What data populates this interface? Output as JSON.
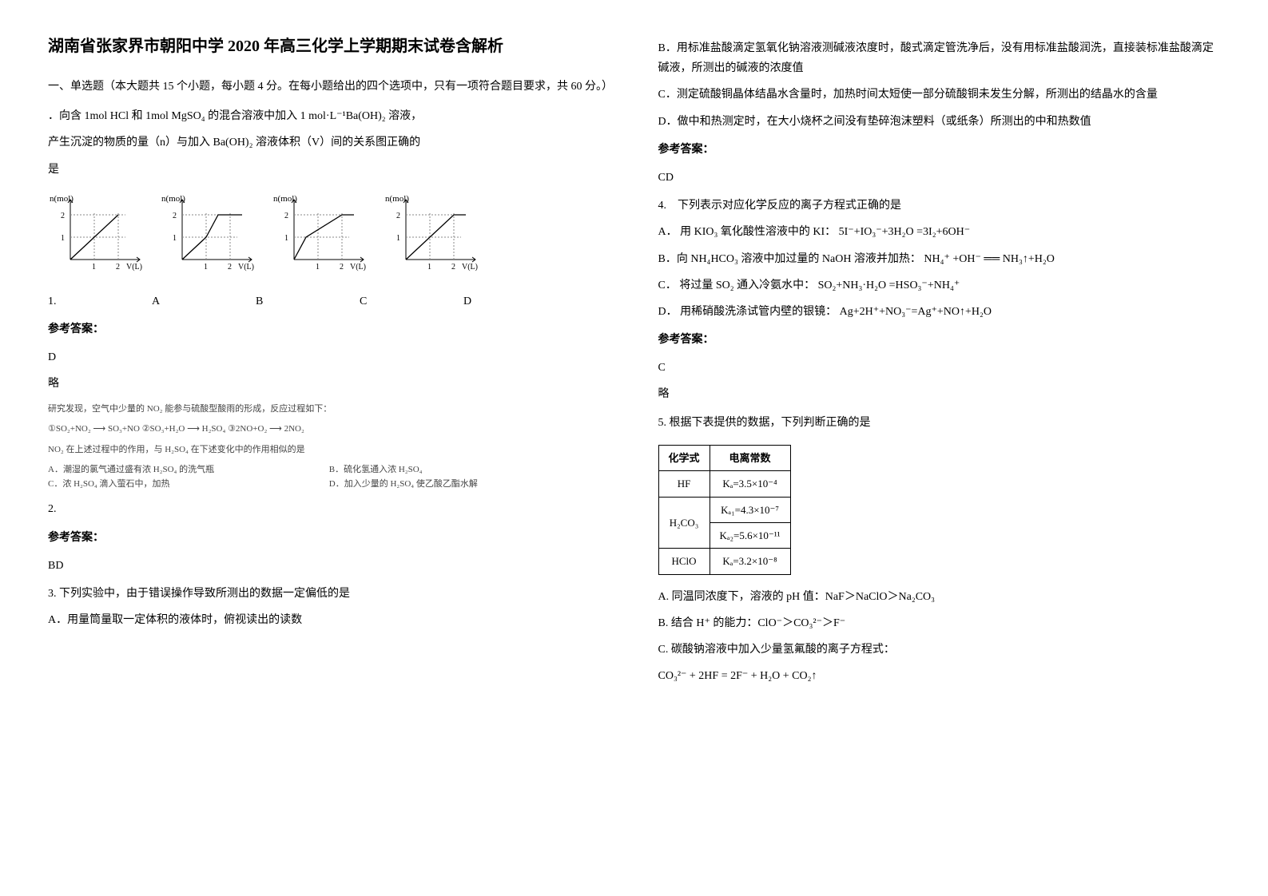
{
  "title": "湖南省张家界市朝阳中学 2020 年高三化学上学期期末试卷含解析",
  "section1_heading": "一、单选题（本大题共 15 个小题，每小题 4 分。在每小题给出的四个选项中，只有一项符合题目要求，共 60 分。）",
  "q1": {
    "stem_line1": "．向含 1mol HCl 和 1mol MgSO₄ 的混合溶液中加入 1 mol·L⁻¹Ba(OH)₂ 溶液，",
    "stem_line2": "产生沉淀的物质的量（n）与加入 Ba(OH)₂ 溶液体积（V）间的关系图正确的",
    "stem_line3": "是",
    "chart": {
      "ylabel": "n(mol)",
      "xlabel": "V(L)",
      "ytick1": 1,
      "ytick2": 2,
      "xtick1": 1,
      "xtick2": 2,
      "axis_color": "#000000",
      "line_color": "#000000",
      "dash_color": "#888888",
      "variants": {
        "A": {
          "segments": [
            [
              0,
              0,
              1,
              1
            ],
            [
              1,
              1,
              2,
              2
            ]
          ],
          "flat_after": false
        },
        "B": {
          "segments": [
            [
              0,
              0,
              1,
              1
            ],
            [
              1,
              1,
              1.5,
              2
            ],
            [
              1.5,
              2,
              2.5,
              2
            ]
          ],
          "flat_after": true
        },
        "C": {
          "segments": [
            [
              0,
              0,
              0.5,
              1
            ],
            [
              0.5,
              1,
              2,
              2
            ],
            [
              2,
              2,
              2.5,
              2
            ]
          ],
          "flat_after": true
        },
        "D": {
          "segments": [
            [
              0,
              0,
              0.5,
              0.5
            ],
            [
              0.5,
              0.5,
              2,
              2
            ],
            [
              2,
              2,
              2.5,
              2
            ]
          ],
          "flat_after": true
        }
      }
    },
    "options": {
      "A": "A",
      "B": "B",
      "C": "C",
      "D": "D"
    },
    "number_label": "1.",
    "answer_label": "参考答案：",
    "answer": "D",
    "explanation": "略"
  },
  "q2": {
    "number_label": "2.",
    "stem0": "研究发现，空气中少量的 NO₂ 能参与硫酸型酸雨的形成，反应过程如下：",
    "stem1": "①SO₂+NO₂ ⟶ SO₃+NO  ②SO₃+H₂O ⟶ H₂SO₄  ③2NO+O₂ ⟶ 2NO₂",
    "stem2": "NO₂ 在上述过程中的作用，与 H₂SO₄ 在下述变化中的作用相似的是",
    "optA": "A．潮湿的氯气通过盛有浓 H₂SO₄ 的洗气瓶",
    "optB": "B．硫化氢通入浓 H₂SO₄",
    "optC": "C．浓 H₂SO₄ 滴入萤石中，加热",
    "optD": "D．加入少量的 H₂SO₄ 使乙酸乙酯水解",
    "answer_label": "参考答案：",
    "answer": "BD"
  },
  "q3": {
    "stem": "3. 下列实验中，由于错误操作导致所测出的数据一定偏低的是",
    "optA": "A．用量筒量取一定体积的液体时，俯视读出的读数",
    "optB": "B．用标准盐酸滴定氢氧化钠溶液测碱液浓度时，酸式滴定管洗净后，没有用标准盐酸润洗，直接装标准盐酸滴定碱液，所测出的碱液的浓度值",
    "optC": "C．测定硫酸铜晶体结晶水含量时，加热时间太短使一部分硫酸铜未发生分解，所测出的结晶水的含量",
    "optD": "D．做中和热测定时，在大小烧杯之间没有垫碎泡沫塑料（或纸条）所测出的中和热数值",
    "answer_label": "参考答案：",
    "answer": "CD"
  },
  "q4": {
    "stem": "4.　下列表示对应化学反应的离子方程式正确的是",
    "optA": "A．  用 KIO₃ 氧化酸性溶液中的 KI：  5I⁻+IO₃⁻+3H₂O =3I₂+6OH⁻",
    "optB": "B．向 NH₄HCO₃ 溶液中加过量的 NaOH 溶液并加热：  NH₄⁺ +OH⁻ ══ NH₃↑+H₂O",
    "optC": "C．  将过量 SO₂ 通入冷氨水中：  SO₂+NH₃·H₂O =HSO₃⁻+NH₄⁺",
    "optD": "D．  用稀硝酸洗涤试管内壁的银镜：  Ag+2H⁺+NO₃⁻=Ag⁺+NO↑+H₂O",
    "answer_label": "参考答案：",
    "answer": "C",
    "explanation": "略"
  },
  "q5": {
    "stem": "5. 根据下表提供的数据，下列判断正确的是",
    "table": {
      "header": {
        "col1": "化学式",
        "col2": "电离常数"
      },
      "rows": [
        {
          "col1": "HF",
          "col2": "Kₐ=3.5×10⁻⁴",
          "rowspan": 1
        },
        {
          "col1": "H₂CO₃",
          "col2a": "Kₐ₁=4.3×10⁻⁷",
          "col2b": "Kₐ₂=5.6×10⁻¹¹",
          "rowspan": 2
        },
        {
          "col1": "HClO",
          "col2": "Kₐ=3.2×10⁻⁸",
          "rowspan": 1
        }
      ],
      "border_color": "#000000",
      "font_size": 13
    },
    "optA": "A. 同温同浓度下，溶液的 pH 值：NaF＞NaClO＞Na₂CO₃",
    "optB": "B. 结合 H⁺ 的能力：ClO⁻＞CO₃²⁻＞F⁻",
    "optC": "C. 碳酸钠溶液中加入少量氢氟酸的离子方程式：",
    "optC_eq": "CO₃²⁻ + 2HF = 2F⁻ + H₂O + CO₂↑"
  }
}
